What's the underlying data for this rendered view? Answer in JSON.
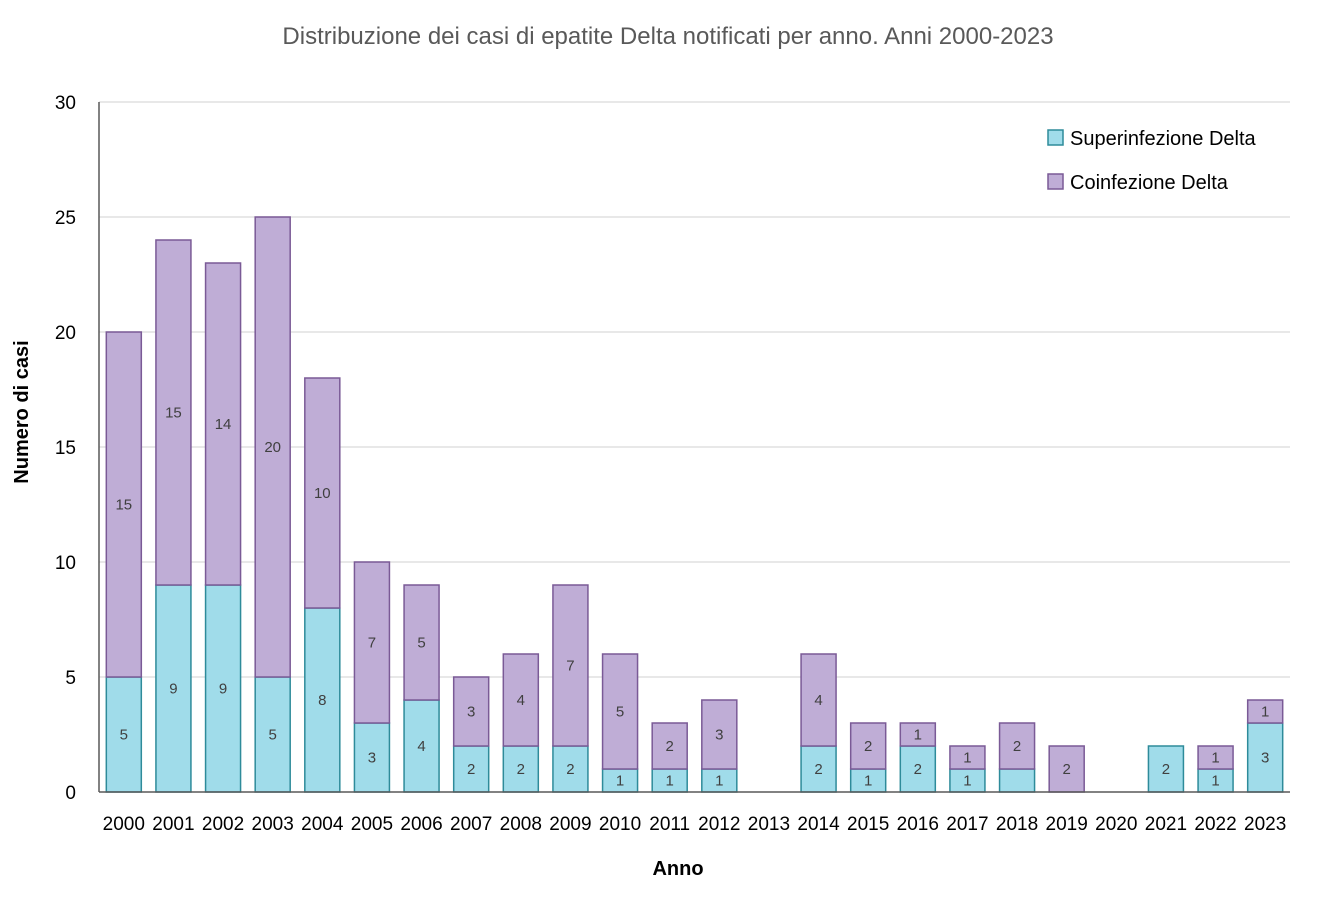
{
  "colors": {
    "superinfezione_fill": "#A0DCEA",
    "superinfezione_stroke": "#2E8B9A",
    "coinfezione_fill": "#BFADD6",
    "coinfezione_stroke": "#7A5A96",
    "grid": "#D9D9D9",
    "axis": "#595959"
  },
  "chart_data": {
    "type": "bar",
    "stacked": true,
    "title": "Distribuzione dei casi di epatite Delta notificati per anno. Anni 2000-2023",
    "xlabel": "Anno",
    "ylabel": "Numero di casi",
    "ylim": [
      0,
      30
    ],
    "yticks": [
      0,
      5,
      10,
      15,
      20,
      25,
      30
    ],
    "grid": true,
    "legend_position": "top-right",
    "categories": [
      "2000",
      "2001",
      "2002",
      "2003",
      "2004",
      "2005",
      "2006",
      "2007",
      "2008",
      "2009",
      "2010",
      "2011",
      "2012",
      "2013",
      "2014",
      "2015",
      "2016",
      "2017",
      "2018",
      "2019",
      "2020",
      "2021",
      "2022",
      "2023"
    ],
    "series": [
      {
        "name": "Superinfezione Delta",
        "values": [
          5,
          9,
          9,
          5,
          8,
          3,
          4,
          2,
          2,
          2,
          1,
          1,
          1,
          0,
          2,
          1,
          2,
          1,
          1,
          0,
          0,
          2,
          1,
          3
        ],
        "labels": [
          "5",
          "9",
          "9",
          "5",
          "8",
          "3",
          "4",
          "2",
          "2",
          "2",
          "1",
          "1",
          "1",
          "",
          "2",
          "1",
          "2",
          "1",
          "",
          "",
          "",
          "2",
          "1",
          "3"
        ]
      },
      {
        "name": "Coinfezione Delta",
        "values": [
          15,
          15,
          14,
          20,
          10,
          7,
          5,
          3,
          4,
          7,
          5,
          2,
          3,
          0,
          4,
          2,
          1,
          1,
          2,
          2,
          0,
          0,
          1,
          1
        ],
        "labels": [
          "15",
          "15",
          "14",
          "20",
          "10",
          "7",
          "5",
          "3",
          "4",
          "7",
          "5",
          "2",
          "3",
          "",
          "4",
          "2",
          "1",
          "1",
          "2",
          "2",
          "",
          "",
          "1",
          "1"
        ]
      }
    ]
  }
}
